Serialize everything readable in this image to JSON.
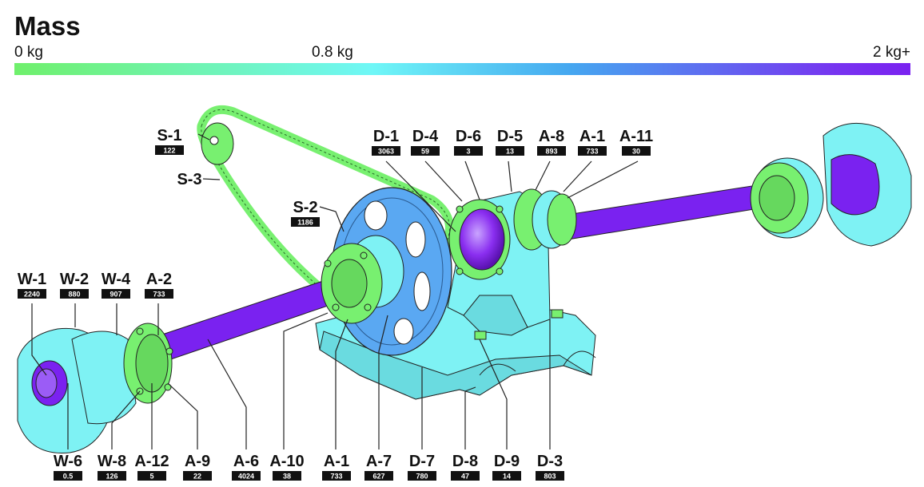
{
  "legend": {
    "title": "Mass",
    "ticks": [
      "0 kg",
      "0.8 kg",
      "2 kg+"
    ],
    "colors": {
      "low": "#6ff06b",
      "mid": "#6ff7f7",
      "high": "#7a22f0"
    }
  },
  "parts": [
    {
      "id": "S-1",
      "mass": "122",
      "color": "#78f070"
    },
    {
      "id": "S-3",
      "color": "#78f070"
    },
    {
      "id": "S-2",
      "mass": "1186",
      "color": "#5aa8f2"
    },
    {
      "id": "D-1",
      "mass": "3063",
      "color": "#8a2ef0"
    },
    {
      "id": "D-4",
      "mass": "59",
      "color": "#78f070"
    },
    {
      "id": "D-6",
      "mass": "3",
      "color": "#78f070"
    },
    {
      "id": "D-5",
      "mass": "13",
      "color": "#78f070"
    },
    {
      "id": "A-8",
      "mass": "893",
      "color": "#78f070"
    },
    {
      "id": "A-1",
      "mass": "733",
      "color": "#7df07a"
    },
    {
      "id": "A-11",
      "mass": "30",
      "color": "#78f070"
    },
    {
      "id": "W-1",
      "mass": "2240",
      "color": "#7c2ef0"
    },
    {
      "id": "W-2",
      "mass": "880",
      "color": "#6ff0f2"
    },
    {
      "id": "W-4",
      "mass": "907",
      "color": "#6ff0f2"
    },
    {
      "id": "A-2",
      "mass": "733",
      "color": "#7df07a"
    },
    {
      "id": "W-6",
      "mass": "0.5",
      "color": "#78f070"
    },
    {
      "id": "W-8",
      "mass": "126",
      "color": "#78f070"
    },
    {
      "id": "A-12",
      "mass": "5",
      "color": "#78f070"
    },
    {
      "id": "A-9",
      "mass": "22",
      "color": "#78f070"
    },
    {
      "id": "A-6",
      "mass": "4024",
      "color": "#7a22f0"
    },
    {
      "id": "A-10",
      "mass": "38",
      "color": "#78f070"
    },
    {
      "id": "A-1",
      "mass": "733",
      "color": "#7df07a"
    },
    {
      "id": "A-7",
      "mass": "627",
      "color": "#78f070"
    },
    {
      "id": "D-7",
      "mass": "780",
      "color": "#7ef2f4"
    },
    {
      "id": "D-8",
      "mass": "47",
      "color": "#78f070"
    },
    {
      "id": "D-9",
      "mass": "14",
      "color": "#78f070"
    },
    {
      "id": "D-3",
      "mass": "803",
      "color": "#7ef2f4"
    }
  ]
}
